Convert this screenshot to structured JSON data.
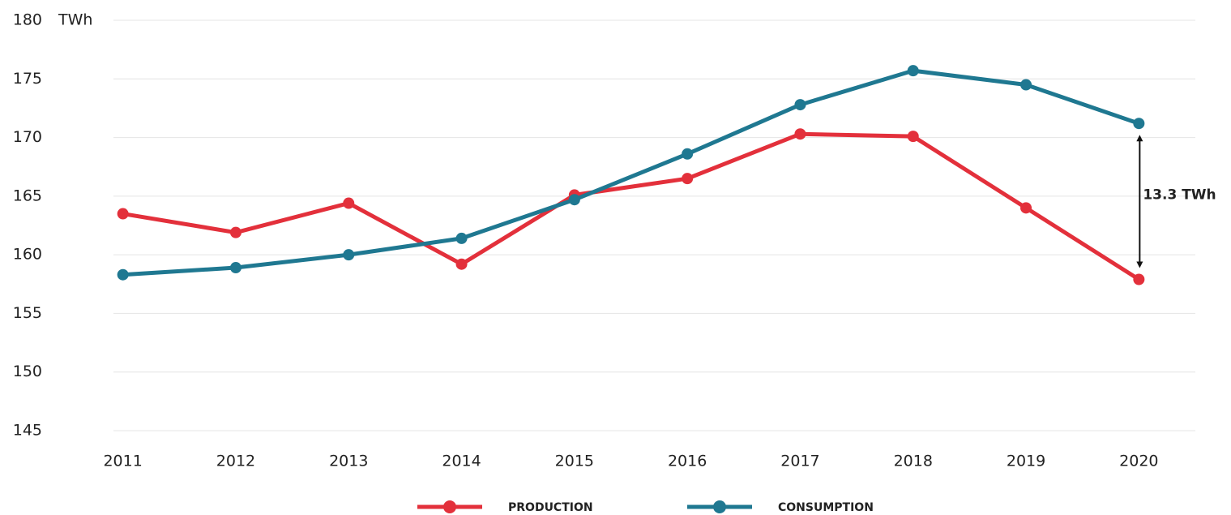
{
  "chart_data": {
    "type": "line",
    "y_unit": "TWh",
    "categories": [
      "2011",
      "2012",
      "2013",
      "2014",
      "2015",
      "2016",
      "2017",
      "2018",
      "2019",
      "2020"
    ],
    "series": [
      {
        "name": "PRODUCTION",
        "color": "#e3303b",
        "values": [
          163.5,
          161.9,
          164.4,
          159.2,
          165.1,
          166.5,
          170.3,
          170.1,
          164.0,
          157.9
        ]
      },
      {
        "name": "CONSUMPTION",
        "color": "#1f7891",
        "values": [
          158.3,
          158.9,
          160.0,
          161.4,
          164.7,
          168.6,
          172.8,
          175.7,
          174.5,
          171.2
        ]
      }
    ],
    "annotation": "13.3 TWh",
    "ylim": [
      145,
      180
    ],
    "yticks": [
      145,
      150,
      155,
      160,
      165,
      170,
      175,
      180
    ],
    "grid": true
  }
}
